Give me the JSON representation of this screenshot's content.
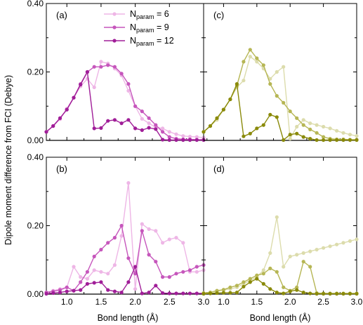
{
  "chart_data": {
    "type": "line",
    "ylabel": "Dipole moment difference from FCI (Debye)",
    "xlabel": "Bond length (Å)",
    "xlim": [
      0.7,
      3.0
    ],
    "ylim": [
      0,
      0.4
    ],
    "xticks": [
      "1.0",
      "1.5",
      "2.0",
      "2.5",
      "3.0"
    ],
    "yticks": [
      "0.00",
      "0.20",
      "0.40"
    ],
    "grid": false,
    "legend_location": "top-right of panel (a)",
    "legend": [
      {
        "prefix": "N",
        "sub": "param",
        "suffix": " = 6"
      },
      {
        "prefix": "N",
        "sub": "param",
        "suffix": " = 9"
      },
      {
        "prefix": "N",
        "sub": "param",
        "suffix": " = 12"
      }
    ],
    "colors": {
      "magenta": [
        "#eeb6e6",
        "#c656bc",
        "#a01e98"
      ],
      "olive": [
        "#dcdcac",
        "#b6b654",
        "#8a8a0a"
      ]
    },
    "x": [
      0.7,
      0.8,
      0.9,
      1.0,
      1.1,
      1.2,
      1.3,
      1.4,
      1.5,
      1.6,
      1.7,
      1.8,
      1.9,
      2.0,
      2.1,
      2.2,
      2.3,
      2.4,
      2.5,
      2.6,
      2.7,
      2.8,
      2.9,
      3.0
    ],
    "panels": [
      {
        "label": "(a)",
        "palette": "magenta",
        "series": [
          {
            "values": [
              0.025,
              0.042,
              0.062,
              0.093,
              0.125,
              0.158,
              0.18,
              0.155,
              0.23,
              0.225,
              0.21,
              0.19,
              0.145,
              0.1,
              0.063,
              0.05,
              0.038,
              0.035,
              0.025,
              0.018,
              0.013,
              0.011,
              0.01,
              0.008
            ]
          },
          {
            "values": [
              0.025,
              0.042,
              0.065,
              0.09,
              0.125,
              0.165,
              0.2,
              0.215,
              0.215,
              0.22,
              0.215,
              0.195,
              0.165,
              0.1,
              0.085,
              0.065,
              0.045,
              0.025,
              0.01,
              0.005,
              0.003,
              0.003,
              0.002,
              0.002
            ]
          },
          {
            "values": [
              0.025,
              0.042,
              0.065,
              0.09,
              0.125,
              0.163,
              0.2,
              0.035,
              0.036,
              0.057,
              0.06,
              0.05,
              0.06,
              0.035,
              0.03,
              0.037,
              0.033,
              0.002,
              0.001,
              0.001,
              0.001,
              0.001,
              0.001,
              0.001
            ]
          }
        ]
      },
      {
        "label": "(c)",
        "palette": "olive",
        "series": [
          {
            "values": [
              0.025,
              0.042,
              0.06,
              0.09,
              0.12,
              0.155,
              0.175,
              0.245,
              0.23,
              0.21,
              0.18,
              0.2,
              0.215,
              0.005,
              0.04,
              0.06,
              0.05,
              0.045,
              0.04,
              0.035,
              0.028,
              0.022,
              0.017,
              0.013
            ]
          },
          {
            "values": [
              0.025,
              0.042,
              0.065,
              0.09,
              0.12,
              0.16,
              0.23,
              0.265,
              0.24,
              0.22,
              0.165,
              0.13,
              0.11,
              0.085,
              0.065,
              0.045,
              0.032,
              0.022,
              0.01,
              0.005,
              0.003,
              0.003,
              0.002,
              0.002
            ]
          },
          {
            "values": [
              0.025,
              0.042,
              0.065,
              0.09,
              0.12,
              0.165,
              0.012,
              0.02,
              0.035,
              0.045,
              0.075,
              0.068,
              0.001,
              0.017,
              0.02,
              0.01,
              0.005,
              0.001,
              0.001,
              0.001,
              0.001,
              0.001,
              0.001,
              0.001
            ]
          }
        ]
      },
      {
        "label": "(b)",
        "palette": "magenta",
        "series": [
          {
            "values": [
              0.005,
              0.01,
              0.015,
              0.02,
              0.08,
              0.05,
              0.045,
              0.07,
              0.065,
              0.06,
              0.085,
              0.17,
              0.325,
              0.015,
              0.205,
              0.19,
              0.185,
              0.15,
              0.16,
              0.165,
              0.15,
              0.065,
              0.065,
              0.07
            ]
          },
          {
            "values": [
              0.005,
              0.008,
              0.012,
              0.02,
              0.01,
              0.035,
              0.065,
              0.11,
              0.13,
              0.15,
              0.165,
              0.2,
              0.105,
              0.06,
              0.185,
              0.115,
              0.095,
              0.05,
              0.05,
              0.06,
              0.065,
              0.07,
              0.08,
              0.085
            ]
          },
          {
            "values": [
              0.001,
              0.003,
              0.005,
              0.008,
              0.01,
              0.012,
              0.03,
              0.033,
              0.035,
              0.012,
              0.008,
              0.005,
              0.035,
              0.08,
              0.002,
              0.005,
              0.025,
              0.003,
              0.002,
              0.002,
              0.002,
              0.002,
              0.002,
              0.002
            ]
          }
        ]
      },
      {
        "label": "(d)",
        "palette": "olive",
        "series": [
          {
            "values": [
              0.003,
              0.005,
              0.008,
              0.012,
              0.015,
              0.02,
              0.03,
              0.04,
              0.05,
              0.07,
              0.12,
              0.225,
              0.08,
              0.11,
              0.115,
              0.12,
              0.125,
              0.13,
              0.135,
              0.14,
              0.145,
              0.15,
              0.155,
              0.16
            ]
          },
          {
            "values": [
              0.003,
              0.005,
              0.01,
              0.013,
              0.02,
              0.025,
              0.035,
              0.045,
              0.055,
              0.06,
              0.075,
              0.065,
              0.02,
              0.01,
              0.02,
              0.095,
              0.08,
              0.003,
              0.002,
              0.002,
              0.002,
              0.002,
              0.002,
              0.002
            ]
          },
          {
            "values": [
              0.001,
              0.002,
              0.003,
              0.004,
              0.004,
              0.005,
              0.022,
              0.035,
              0.045,
              0.03,
              0.015,
              0.005,
              0.002,
              0.008,
              0.012,
              0.005,
              0.002,
              0.001,
              0.001,
              0.001,
              0.001,
              0.001,
              0.001,
              0.001
            ]
          }
        ]
      }
    ]
  }
}
